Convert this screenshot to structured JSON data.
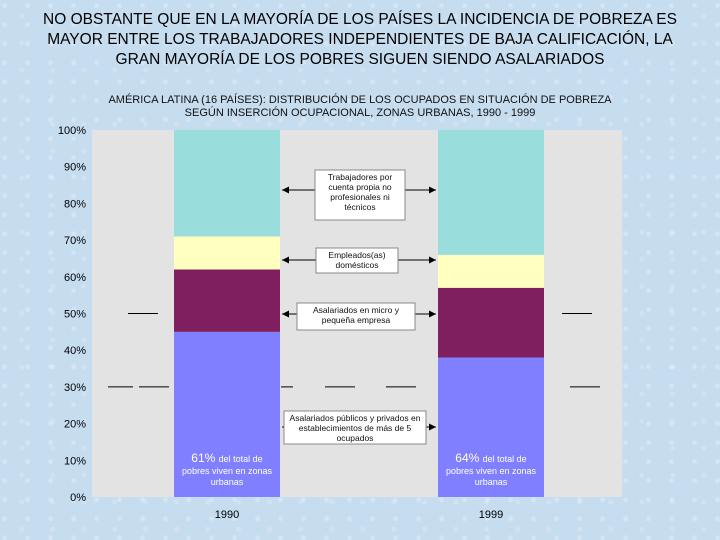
{
  "header": {
    "title": "NO OBSTANTE QUE EN LA MAYORÍA DE LOS PAÍSES LA INCIDENCIA DE POBREZA ES\nMAYOR ENTRE LOS TRABAJADORES INDEPENDIENTES DE BAJA CALIFICACIÓN, LA\nGRAN MAYORÍA DE LOS POBRES SIGUEN SIENDO ASALARIADOS",
    "subtitle": "AMÉRICA LATINA (16 PAÍSES): DISTRIBUCIÓN DE LOS OCUPADOS EN SITUACIÓN DE POBREZA\nSEGÚN INSERCIÓN OCUPACIONAL, ZONAS URBANAS, 1990 - 1999"
  },
  "colors": {
    "page_bg": "#c6dcef",
    "plot_bg": "#e3e3e3",
    "asalariados_grandes": "#7f7fff",
    "asalariados_micro": "#7f1f5f",
    "empleados_domesticos": "#ffffc0",
    "cuenta_propia": "#99dddd"
  },
  "chart_data": {
    "type": "bar",
    "stacked": true,
    "categories": [
      "1990",
      "1999"
    ],
    "y_ticks": [
      "0%",
      "10%",
      "20%",
      "30%",
      "40%",
      "50%",
      "60%",
      "70%",
      "80%",
      "90%",
      "100%"
    ],
    "ylim": [
      0,
      100
    ],
    "series": [
      {
        "name": "Asalariados públicos y privados en establecimientos de más de 5 ocupados",
        "values": [
          45,
          38
        ]
      },
      {
        "name": "Asalariados en micro y pequeña empresa",
        "values": [
          17,
          19
        ]
      },
      {
        "name": "Empleados(as) domésticos",
        "values": [
          9,
          9
        ]
      },
      {
        "name": "Trabajadores por cuenta propia no profesionales ni técnicos",
        "values": [
          29,
          34
        ]
      }
    ],
    "bar_annotations": [
      {
        "category": "1990",
        "value": "61%",
        "text": "del total de pobres viven en zonas urbanas"
      },
      {
        "category": "1999",
        "value": "64%",
        "text": "del total de pobres viven en zonas urbanas"
      }
    ],
    "annotations": [
      {
        "series": 3,
        "text": "Trabajadores por cuenta propia no profesionales ni técnicos"
      },
      {
        "series": 2,
        "text": "Empleados(as) domésticos"
      },
      {
        "series": 1,
        "text": "Asalariados en micro y pequeña empresa"
      },
      {
        "series": 0,
        "text": "Asalariados públicos y privados en establecimientos de más de 5 ocupados"
      }
    ],
    "legend": "none",
    "grid": false
  }
}
